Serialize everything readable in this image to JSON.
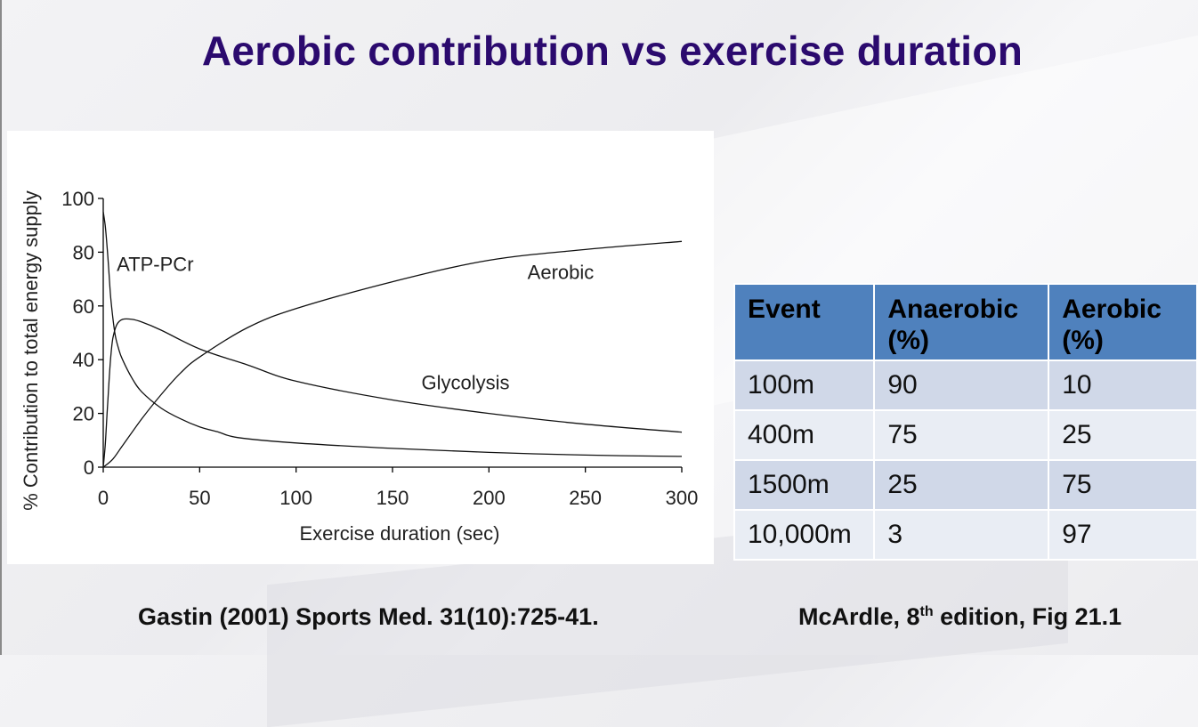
{
  "slide": {
    "title": "Aerobic contribution vs exercise duration"
  },
  "chart_data": {
    "type": "line",
    "xlabel": "Exercise duration (sec)",
    "ylabel": "% Contribution to total energy supply",
    "xlim": [
      0,
      300
    ],
    "ylim": [
      0,
      100
    ],
    "xticks": [
      "0",
      "50",
      "100",
      "150",
      "200",
      "250",
      "300"
    ],
    "yticks": [
      "0",
      "20",
      "40",
      "60",
      "80",
      "100"
    ],
    "series": [
      {
        "name": "ATP-PCr",
        "label": "ATP-PCr",
        "x": [
          0,
          1,
          2,
          3,
          4,
          6,
          8,
          10,
          15,
          20,
          30,
          40,
          50,
          60,
          70,
          100,
          150,
          200,
          250,
          300
        ],
        "values": [
          95,
          90,
          82,
          72,
          62,
          50,
          44,
          40,
          33,
          28,
          22,
          18,
          15,
          13,
          11,
          9,
          7,
          5.5,
          4.5,
          4
        ]
      },
      {
        "name": "Glycolysis",
        "label": "Glycolysis",
        "x": [
          0,
          1,
          2,
          3,
          4,
          5,
          7,
          10,
          15,
          20,
          30,
          50,
          75,
          100,
          150,
          200,
          250,
          300
        ],
        "values": [
          0,
          8,
          20,
          32,
          42,
          48,
          53,
          55,
          55,
          54,
          51,
          44,
          38,
          32,
          25,
          20,
          16,
          13
        ]
      },
      {
        "name": "Aerobic",
        "label": "Aerobic",
        "x": [
          0,
          5,
          10,
          20,
          30,
          40,
          50,
          75,
          100,
          150,
          200,
          250,
          300
        ],
        "values": [
          0,
          3,
          8,
          18,
          27,
          35,
          41,
          52,
          59,
          69,
          77,
          81,
          84
        ]
      }
    ]
  },
  "table": {
    "headers": [
      "Event",
      "Anaerobic (%)",
      "Aerobic (%)"
    ],
    "rows": [
      [
        "100m",
        "90",
        "10"
      ],
      [
        "400m",
        "75",
        "25"
      ],
      [
        "1500m",
        "25",
        "75"
      ],
      [
        "10,000m",
        "3",
        "97"
      ]
    ]
  },
  "citations": {
    "left": "Gastin (2001) Sports Med. 31(10):725-41.",
    "right_pre": "McArdle, 8",
    "right_sup": "th",
    "right_post": " edition, Fig 21.1"
  }
}
